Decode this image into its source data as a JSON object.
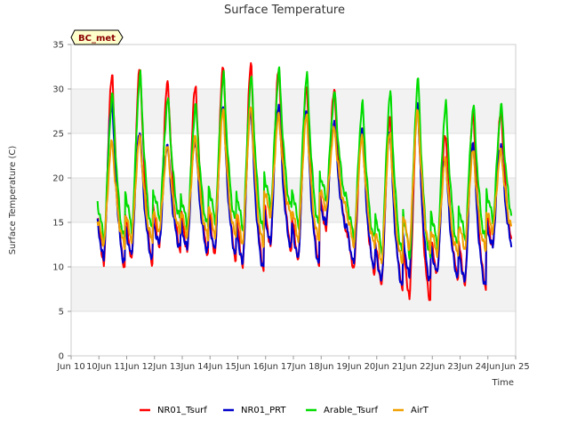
{
  "chart_data": {
    "type": "line",
    "title": "Surface Temperature",
    "xlabel": "Time",
    "ylabel": "Surface Temperature (C)",
    "ylim": [
      0,
      35
    ],
    "xlim": [
      "Jun 10",
      "Jun 25"
    ],
    "yticks": [
      "0",
      "5",
      "10",
      "15",
      "20",
      "25",
      "30",
      "35"
    ],
    "xticks": [
      "Jun 10",
      "10Jun",
      "11Jun",
      "12Jun",
      "13Jun",
      "14Jun",
      "15Jun",
      "16Jun",
      "17Jun",
      "18Jun",
      "19Jun",
      "20Jun",
      "21Jun",
      "22Jun",
      "23Jun",
      "24Jun",
      "Jun 25"
    ],
    "grid": "horizontal alternating bands",
    "legend_position": "bottom",
    "site_tag": "BC_met",
    "daily_cycle": {
      "days": [
        "Jun 10",
        "Jun 11",
        "Jun 12",
        "Jun 13",
        "Jun 14",
        "Jun 15",
        "Jun 16",
        "Jun 17",
        "Jun 18",
        "Jun 19",
        "Jun 20",
        "Jun 21",
        "Jun 22",
        "Jun 23",
        "Jun 24"
      ]
    },
    "series": [
      {
        "name": "NR01_Tsurf",
        "color": "#ff0000",
        "daily_min": [
          10.0,
          10.5,
          12.0,
          11.5,
          11.0,
          9.8,
          12.0,
          10.5,
          14.0,
          9.5,
          7.8,
          6.3,
          9.0,
          7.8,
          12.0
        ],
        "daily_max": [
          31.8,
          32.7,
          31.0,
          30.5,
          32.8,
          33.0,
          32.5,
          30.5,
          30.0,
          26.0,
          27.0,
          28.5,
          25.0,
          27.5,
          27.5
        ]
      },
      {
        "name": "NR01_PRT",
        "color": "#0000cc",
        "daily_min": [
          10.5,
          11.0,
          12.3,
          11.8,
          11.5,
          10.0,
          12.3,
          10.5,
          14.5,
          10.0,
          8.0,
          8.5,
          9.0,
          8.0,
          12.0
        ],
        "daily_max": [
          28.8,
          25.5,
          24.0,
          24.5,
          28.5,
          28.0,
          28.5,
          28.0,
          26.5,
          26.0,
          25.5,
          28.5,
          22.5,
          24.2,
          24.0
        ]
      },
      {
        "name": "Arable_Tsurf",
        "color": "#00dd00",
        "daily_min": [
          13.0,
          14.0,
          15.3,
          14.5,
          15.0,
          14.0,
          16.5,
          14.5,
          17.5,
          13.0,
          11.5,
          11.0,
          12.2,
          13.0,
          15.2
        ],
        "daily_max": [
          29.3,
          31.5,
          28.8,
          28.0,
          31.5,
          31.3,
          32.0,
          31.5,
          29.5,
          28.2,
          29.5,
          31.0,
          28.2,
          28.0,
          28.0
        ]
      },
      {
        "name": "AirT",
        "color": "#f0a000",
        "daily_min": [
          12.5,
          13.0,
          14.0,
          13.5,
          13.5,
          12.5,
          15.8,
          13.0,
          16.5,
          12.5,
          10.5,
          12.0,
          11.5,
          12.0,
          14.0
        ],
        "daily_max": [
          24.0,
          24.5,
          23.5,
          24.5,
          27.5,
          28.0,
          27.0,
          27.0,
          25.5,
          24.5,
          25.0,
          27.5,
          22.0,
          23.0,
          23.0
        ]
      }
    ]
  }
}
